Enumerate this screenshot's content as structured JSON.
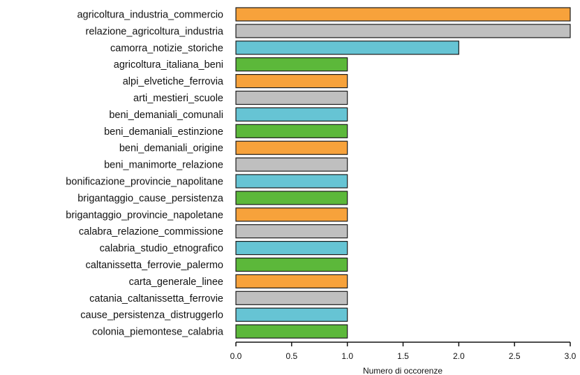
{
  "chart_data": {
    "type": "bar",
    "orientation": "horizontal",
    "categories": [
      "agricoltura_industria_commercio",
      "relazione_agricoltura_industria",
      "camorra_notizie_storiche",
      "agricoltura_italiana_beni",
      "alpi_elvetiche_ferrovia",
      "arti_mestieri_scuole",
      "beni_demaniali_comunali",
      "beni_demaniali_estinzione",
      "beni_demaniali_origine",
      "beni_manimorte_relazione",
      "bonificazione_provincie_napolitane",
      "brigantaggio_cause_persistenza",
      "brigantaggio_provincie_napoletane",
      "calabra_relazione_commissione",
      "calabria_studio_etnografico",
      "caltanissetta_ferrovie_palermo",
      "carta_generale_linee",
      "catania_caltanissetta_ferrovie",
      "cause_persistenza_distruggerlo",
      "colonia_piemontese_calabria"
    ],
    "values": [
      3,
      3,
      2,
      1,
      1,
      1,
      1,
      1,
      1,
      1,
      1,
      1,
      1,
      1,
      1,
      1,
      1,
      1,
      1,
      1
    ],
    "bar_colors": [
      "#f7a23b",
      "#bfbfbf",
      "#66c4d4",
      "#5cb83a",
      "#f7a23b",
      "#bfbfbf",
      "#66c4d4",
      "#5cb83a",
      "#f7a23b",
      "#bfbfbf",
      "#66c4d4",
      "#5cb83a",
      "#f7a23b",
      "#bfbfbf",
      "#66c4d4",
      "#5cb83a",
      "#f7a23b",
      "#bfbfbf",
      "#66c4d4",
      "#5cb83a"
    ],
    "xlabel": "Numero di occorenze",
    "xlim": [
      0,
      3
    ],
    "xticks": [
      "0.0",
      "0.5",
      "1.0",
      "1.5",
      "2.0",
      "2.5",
      "3.0"
    ],
    "grid": false,
    "legend": false
  }
}
